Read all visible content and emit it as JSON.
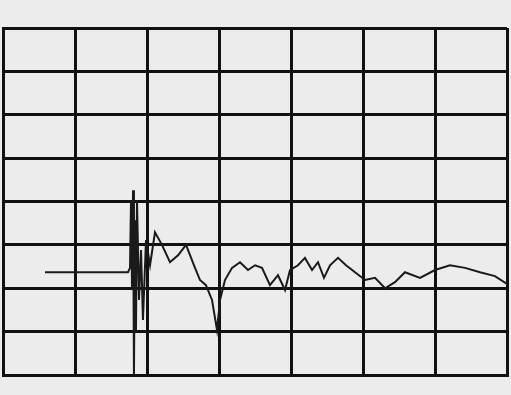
{
  "chart_data": {
    "type": "line",
    "color": "#1a1a1a",
    "grid": true,
    "tick_labels": false,
    "xlim": [
      0,
      7
    ],
    "xticks": [
      0,
      1,
      2,
      3,
      4,
      5,
      6,
      7
    ],
    "ylim": [
      0,
      8
    ],
    "yticks": [
      0,
      1,
      2,
      3,
      4,
      5,
      6,
      7,
      8
    ],
    "x": [
      0.583,
      1.736,
      1.764,
      1.778,
      1.792,
      1.806,
      1.819,
      1.833,
      1.847,
      1.861,
      1.889,
      1.917,
      1.944,
      1.986,
      2.042,
      2.111,
      2.208,
      2.319,
      2.431,
      2.542,
      2.653,
      2.736,
      2.819,
      2.903,
      2.972,
      3.014,
      3.083,
      3.181,
      3.292,
      3.403,
      3.5,
      3.597,
      3.708,
      3.819,
      3.917,
      3.986,
      4.097,
      4.194,
      4.292,
      4.375,
      4.458,
      4.542,
      4.653,
      4.764,
      4.889,
      5.028,
      5.167,
      5.306,
      5.444,
      5.583,
      5.792,
      6.0,
      6.208,
      6.417,
      6.625,
      6.833,
      7.0
    ],
    "values": [
      2.37,
      2.37,
      2.47,
      4.03,
      1.96,
      4.26,
      0,
      3.57,
      1.04,
      4.03,
      1.73,
      2.88,
      1.27,
      3.11,
      2.53,
      3.29,
      3.0,
      2.6,
      2.76,
      3.0,
      2.53,
      2.19,
      2.07,
      1.73,
      1.04,
      1.73,
      2.19,
      2.47,
      2.6,
      2.42,
      2.53,
      2.47,
      2.07,
      2.3,
      1.96,
      2.42,
      2.53,
      2.7,
      2.42,
      2.6,
      2.24,
      2.53,
      2.7,
      2.53,
      2.37,
      2.19,
      2.24,
      2.0,
      2.14,
      2.37,
      2.24,
      2.42,
      2.53,
      2.47,
      2.37,
      2.28,
      2.1
    ]
  }
}
